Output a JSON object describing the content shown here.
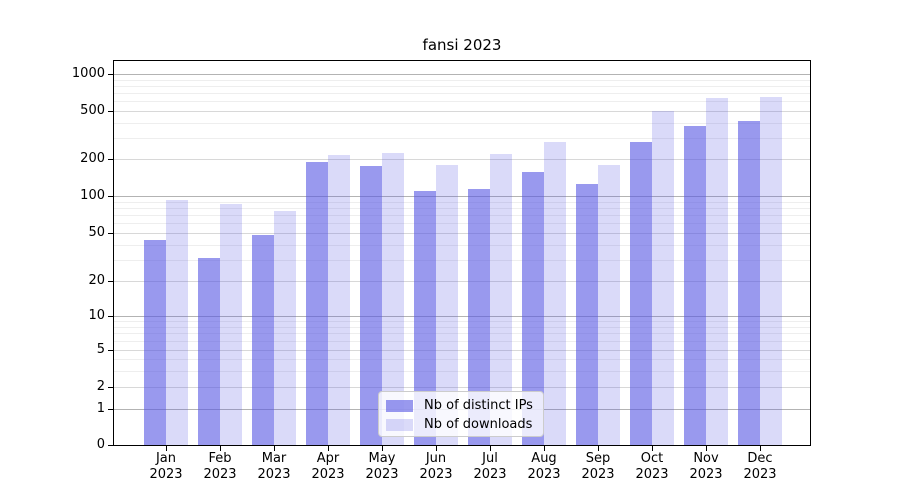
{
  "chart_data": {
    "type": "bar",
    "title": "fansi 2023",
    "categories": [
      "Jan 2023",
      "Feb 2023",
      "Mar 2023",
      "Apr 2023",
      "May 2023",
      "Jun 2023",
      "Jul 2023",
      "Aug 2023",
      "Sep 2023",
      "Oct 2023",
      "Nov 2023",
      "Dec 2023"
    ],
    "series": [
      {
        "name": "Nb of distinct IPs",
        "color": "#5555e2",
        "fill": "rgba(85,85,226,0.60)",
        "values": [
          44,
          31,
          48,
          190,
          175,
          110,
          113,
          158,
          125,
          278,
          378,
          415
        ]
      },
      {
        "name": "Nb of downloads",
        "color": "#5555e2",
        "fill": "rgba(85,85,226,0.22)",
        "values": [
          93,
          86,
          75,
          215,
          225,
          178,
          220,
          277,
          178,
          500,
          635,
          655
        ]
      }
    ],
    "xlabel": "",
    "ylabel": "",
    "yscale": "symlog",
    "y_ticks": [
      0,
      1,
      2,
      5,
      10,
      20,
      50,
      100,
      200,
      500,
      1000
    ],
    "ylim": [
      0,
      1100
    ],
    "grid": "horizontal major + minor",
    "legend_position": "lower center"
  },
  "colors": {
    "grid_major": "#b3b3b3",
    "grid_mid": "#d8d8d8",
    "grid_minor": "#eeeeee",
    "spine": "#000000",
    "text": "#000000"
  }
}
